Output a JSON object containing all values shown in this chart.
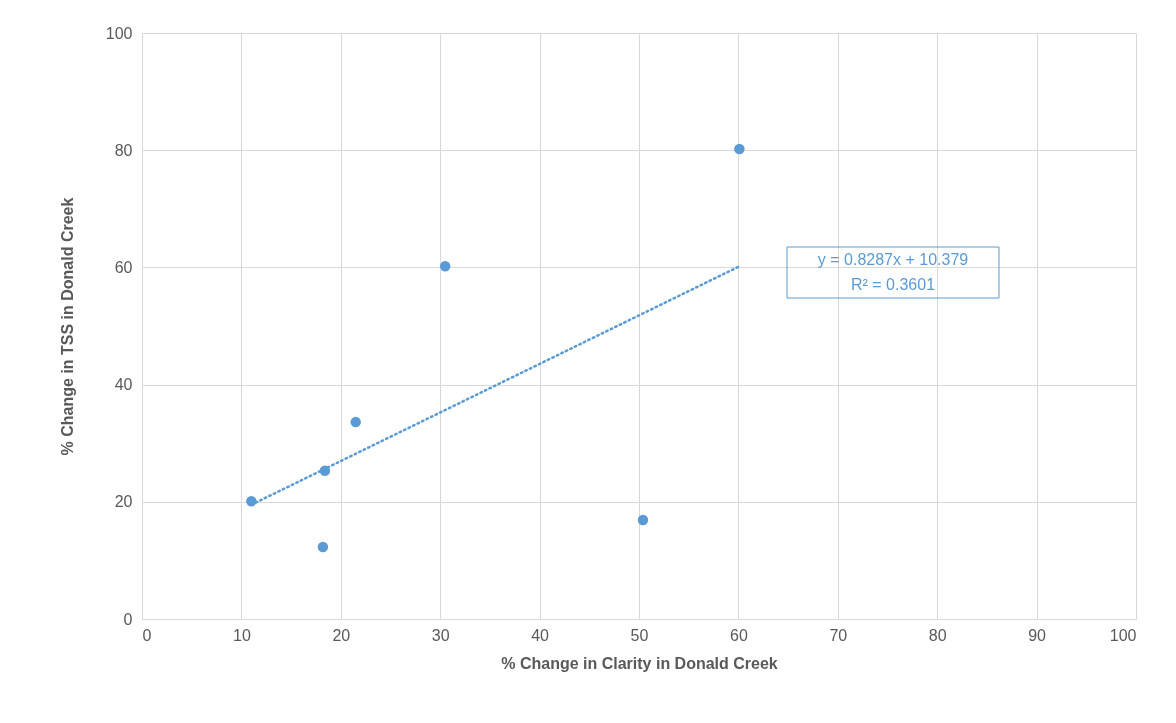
{
  "chart_data": {
    "type": "scatter",
    "xlabel": "% Change in Clarity in Donald Creek",
    "ylabel": "% Change in TSS in Donald Creek",
    "xlim": [
      0,
      100
    ],
    "xticks": [
      0,
      10,
      20,
      30,
      40,
      50,
      60,
      70,
      80,
      90,
      100
    ],
    "ylim": [
      0,
      100
    ],
    "yticks": [
      0,
      20,
      40,
      60,
      80,
      100
    ],
    "grid": true,
    "marker": "circle",
    "series": [
      {
        "type": "scatter",
        "color": "#5b9bd5",
        "x": [
          11,
          18.2,
          18.4,
          21.5,
          30.5,
          50.4,
          60.1
        ],
        "values": [
          20.1,
          12.3,
          25.3,
          33.6,
          60.2,
          16.9,
          80.2
        ]
      },
      {
        "type": "line",
        "color": "#5b9bd5",
        "line_style": "dotted",
        "marker": "none",
        "x": [
          11,
          60
        ],
        "values": [
          19.5,
          60.1
        ]
      }
    ],
    "annotations": [
      "y = 0.8287x + 10.379",
      "R² = 0.3601"
    ]
  }
}
